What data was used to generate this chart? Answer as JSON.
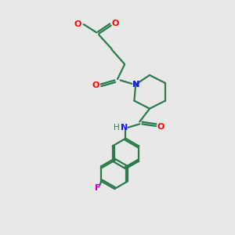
{
  "bg_color": "#e8e8e8",
  "bond_color": "#2d7a4f",
  "N_color": "#1a1aff",
  "O_color": "#ff0000",
  "F_color": "#cc00cc",
  "line_width": 1.6,
  "figsize": [
    3.0,
    3.0
  ],
  "dpi": 100,
  "xlim": [
    0,
    10
  ],
  "ylim": [
    0,
    10
  ]
}
